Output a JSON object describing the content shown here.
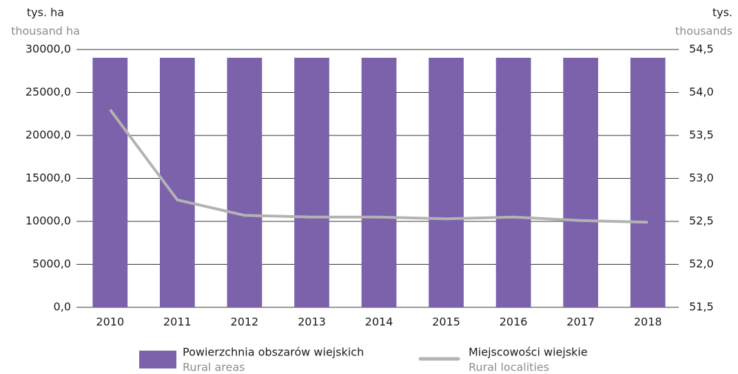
{
  "chart_data": {
    "type": "bar_line",
    "y_label": "tys. ha",
    "y_label_en": "thousand ha",
    "y2_label": "tys.",
    "y2_label_en": "thousands",
    "categories": [
      "2010",
      "2011",
      "2012",
      "2013",
      "2014",
      "2015",
      "2016",
      "2017",
      "2018"
    ],
    "series": [
      {
        "name": "Powierzchnia obszarów wiejskich",
        "name_en": "Rural areas",
        "type": "bar",
        "color": "#7b62ab",
        "values": [
          29040,
          29040,
          29040,
          29040,
          29040,
          29040,
          29040,
          29040,
          29040
        ]
      },
      {
        "name": "Miejscowości wiejskie",
        "name_en": "Rural localities",
        "type": "line",
        "axis": "y2",
        "color": "#b3b3b3",
        "values": [
          53.8,
          52.75,
          52.57,
          52.55,
          52.55,
          52.53,
          52.55,
          52.51,
          52.49
        ]
      }
    ],
    "ylim": [
      0,
      30000
    ],
    "yticks": [
      {
        "value": 0,
        "label": "0,0"
      },
      {
        "value": 5000,
        "label": "5000,0"
      },
      {
        "value": 10000,
        "label": "10000,0"
      },
      {
        "value": 15000,
        "label": "15000,0"
      },
      {
        "value": 20000,
        "label": "20000,0"
      },
      {
        "value": 25000,
        "label": "25000,0"
      },
      {
        "value": 30000,
        "label": "30000,0"
      }
    ],
    "y2lim": [
      51.5,
      54.5
    ],
    "y2ticks": [
      {
        "value": 51.5,
        "label": "51,5"
      },
      {
        "value": 52,
        "label": "52,0"
      },
      {
        "value": 52.5,
        "label": "52,5"
      },
      {
        "value": 53,
        "label": "53,0"
      },
      {
        "value": 53.5,
        "label": "53,5"
      },
      {
        "value": 54,
        "label": "54,0"
      },
      {
        "value": 54.5,
        "label": "54,5"
      }
    ],
    "grid": true
  }
}
